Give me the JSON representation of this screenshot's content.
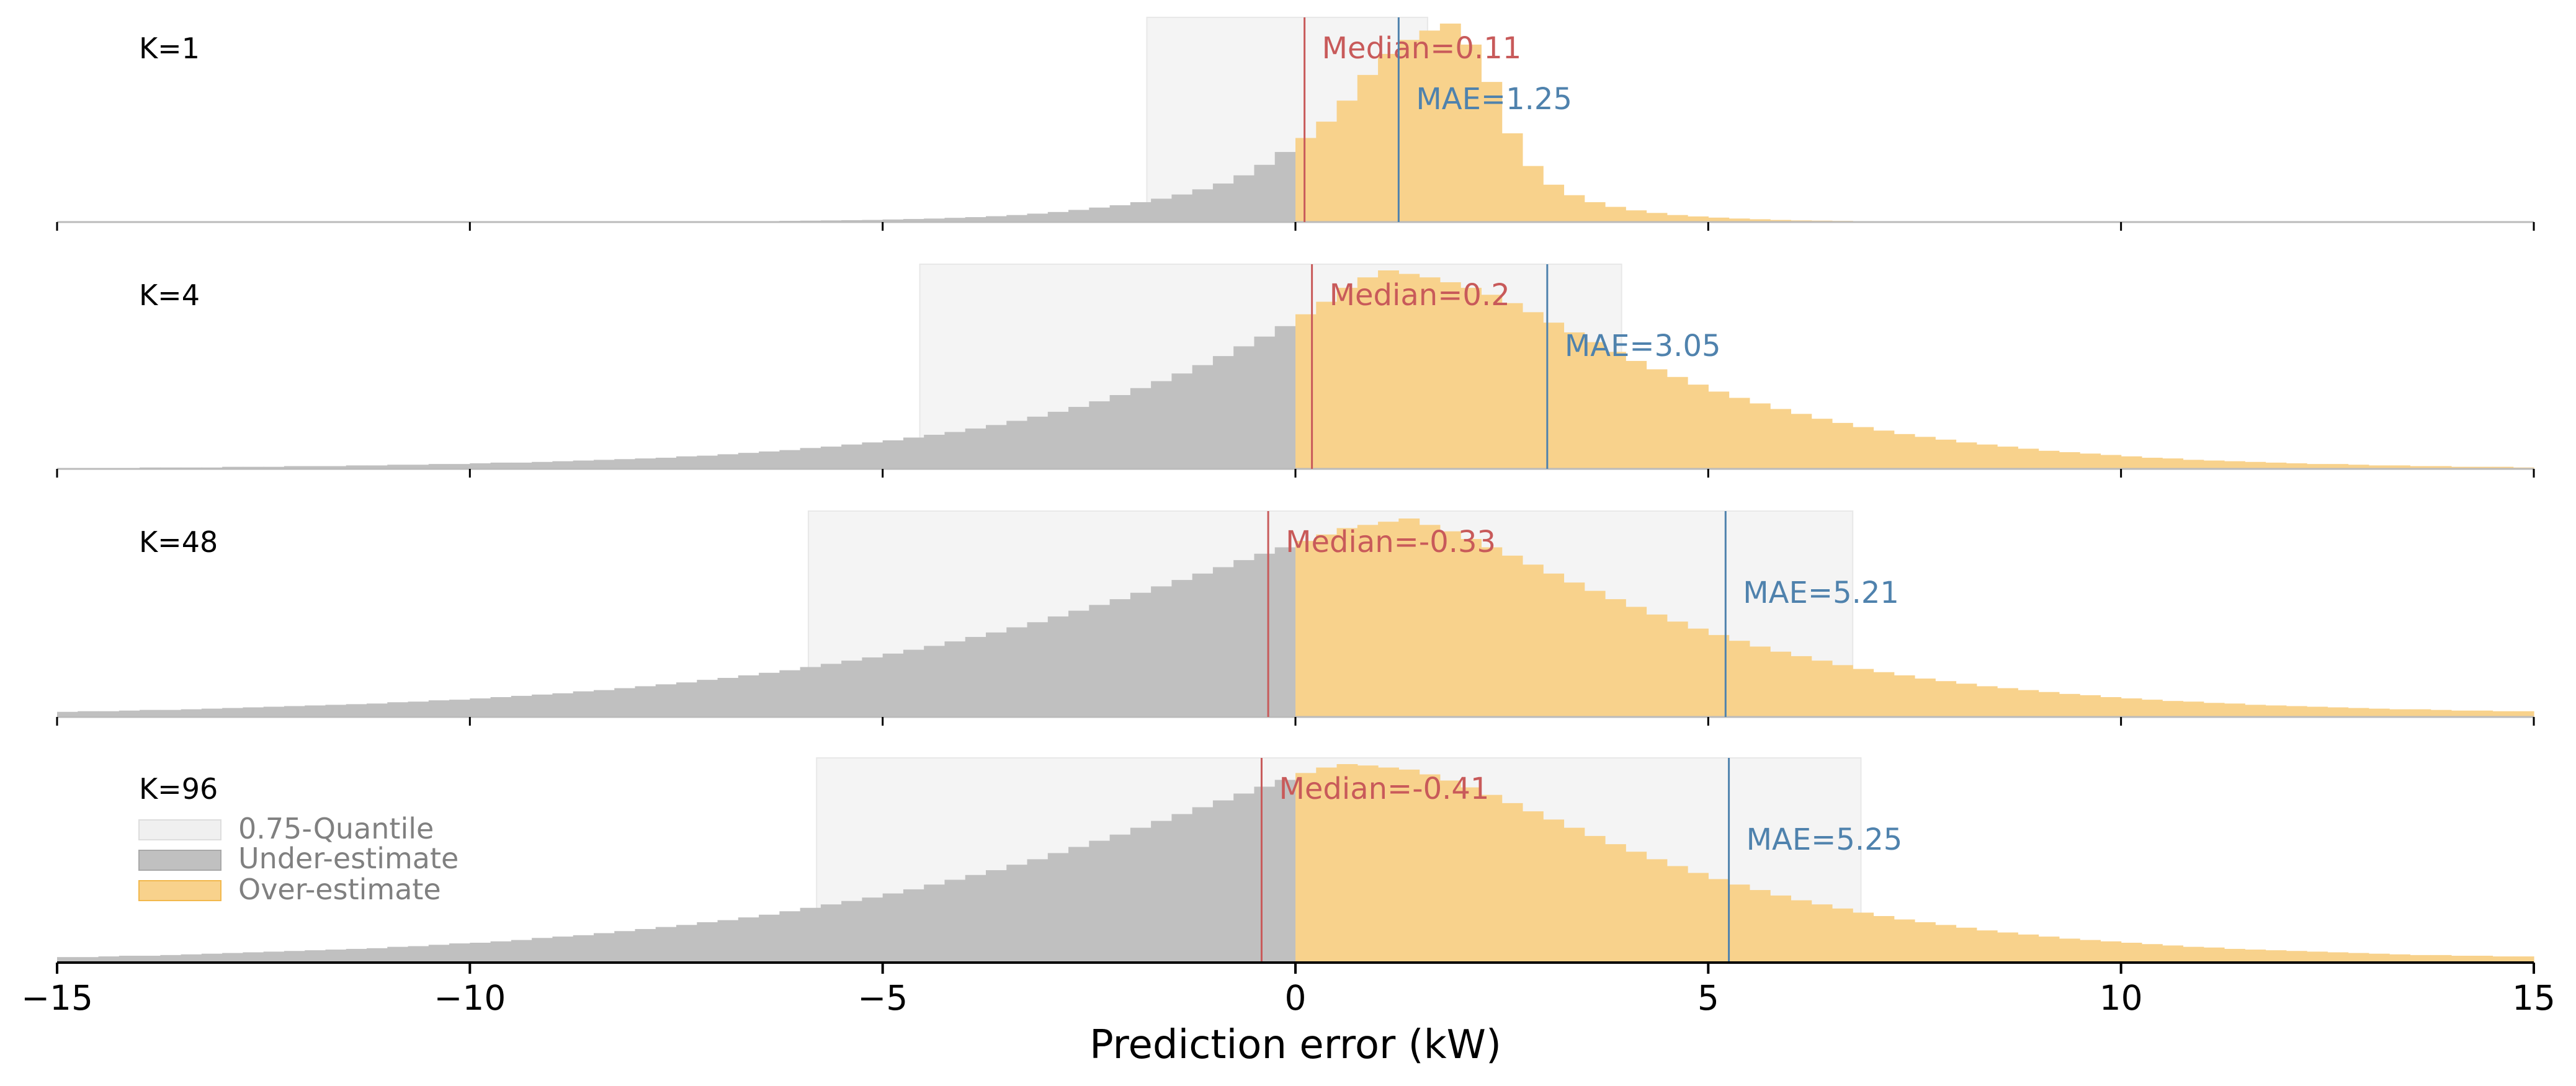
{
  "chart_data": {
    "type": "histogram",
    "xlabel": "Prediction error (kW)",
    "xlim": [
      -15,
      15
    ],
    "xticks": [
      {
        "value": -15,
        "label": "−15"
      },
      {
        "value": -10,
        "label": "−10"
      },
      {
        "value": -5,
        "label": "−5"
      },
      {
        "value": 0,
        "label": "0"
      },
      {
        "value": 5,
        "label": "5"
      },
      {
        "value": 10,
        "label": "10"
      },
      {
        "value": 15,
        "label": "15"
      }
    ],
    "legend": {
      "position": "inside-bottom-left",
      "entries": [
        "0.75-Quantile",
        "Under-estimate",
        "Over-estimate"
      ]
    },
    "colors": {
      "under": "#c0c0c0",
      "over": "#f8d28c",
      "quantile": "#f4f4f4",
      "median": "#c85a5a",
      "mae": "#4f82ad"
    },
    "panels": [
      {
        "label": "K=1",
        "median": 0.11,
        "median_label": "Median=0.11",
        "mae": 1.25,
        "mae_label": "MAE=1.25",
        "quantile_range": [
          -1.8,
          1.6
        ],
        "bin_width": 0.25,
        "bin_start": -15,
        "density": [
          0,
          0,
          0,
          0,
          0,
          0,
          0,
          0,
          0,
          0,
          0,
          0,
          0,
          0,
          0,
          0,
          0,
          0,
          0,
          0,
          0,
          0,
          0,
          0,
          0,
          0,
          0.001,
          0.001,
          0.001,
          0.002,
          0.002,
          0.002,
          0.003,
          0.003,
          0.004,
          0.005,
          0.006,
          0.007,
          0.008,
          0.009,
          0.011,
          0.013,
          0.015,
          0.018,
          0.021,
          0.025,
          0.03,
          0.036,
          0.043,
          0.052,
          0.062,
          0.072,
          0.085,
          0.1,
          0.118,
          0.14,
          0.165,
          0.2,
          0.245,
          0.3,
          0.36,
          0.43,
          0.52,
          0.63,
          0.72,
          0.78,
          0.82,
          0.85,
          0.76,
          0.6,
          0.38,
          0.24,
          0.16,
          0.115,
          0.085,
          0.065,
          0.05,
          0.039,
          0.03,
          0.024,
          0.019,
          0.015,
          0.012,
          0.009,
          0.007,
          0.006,
          0.005,
          0.004,
          0.003,
          0.002,
          0.002,
          0.001,
          0.001,
          0.001,
          0.001,
          0.001,
          0,
          0,
          0,
          0,
          0,
          0,
          0,
          0,
          0,
          0,
          0,
          0,
          0,
          0,
          0,
          0,
          0,
          0,
          0,
          0,
          0,
          0,
          0,
          0,
          0,
          0,
          0,
          0,
          0,
          0
        ]
      },
      {
        "label": "K=4",
        "median": 0.2,
        "median_label": "Median=0.2",
        "mae": 3.05,
        "mae_label": "MAE=3.05",
        "quantile_range": [
          -4.55,
          3.95
        ],
        "bin_width": 0.25,
        "bin_start": -15,
        "density": [
          0.001,
          0.001,
          0.001,
          0.001,
          0.002,
          0.002,
          0.002,
          0.002,
          0.003,
          0.003,
          0.003,
          0.004,
          0.004,
          0.004,
          0.005,
          0.005,
          0.006,
          0.006,
          0.007,
          0.007,
          0.008,
          0.009,
          0.009,
          0.01,
          0.011,
          0.012,
          0.013,
          0.014,
          0.015,
          0.016,
          0.018,
          0.019,
          0.021,
          0.023,
          0.025,
          0.027,
          0.03,
          0.032,
          0.035,
          0.038,
          0.041,
          0.045,
          0.049,
          0.053,
          0.058,
          0.063,
          0.069,
          0.075,
          0.082,
          0.089,
          0.097,
          0.106,
          0.116,
          0.126,
          0.137,
          0.149,
          0.162,
          0.176,
          0.19,
          0.205,
          0.222,
          0.24,
          0.26,
          0.275,
          0.285,
          0.28,
          0.275,
          0.268,
          0.26,
          0.25,
          0.238,
          0.225,
          0.21,
          0.196,
          0.182,
          0.168,
          0.155,
          0.143,
          0.132,
          0.121,
          0.111,
          0.102,
          0.094,
          0.086,
          0.079,
          0.072,
          0.066,
          0.06,
          0.055,
          0.05,
          0.046,
          0.042,
          0.038,
          0.035,
          0.032,
          0.029,
          0.026,
          0.024,
          0.022,
          0.02,
          0.018,
          0.016,
          0.015,
          0.013,
          0.012,
          0.011,
          0.01,
          0.009,
          0.008,
          0.007,
          0.007,
          0.006,
          0.005,
          0.005,
          0.004,
          0.004,
          0.003,
          0.003,
          0.003,
          0.002
        ]
      },
      {
        "label": "K=48",
        "median": -0.33,
        "median_label": "Median=-0.33",
        "mae": 5.21,
        "mae_label": "MAE=5.21",
        "quantile_range": [
          -5.9,
          6.75
        ],
        "bin_width": 0.25,
        "bin_start": -15,
        "density": [
          0.008,
          0.009,
          0.009,
          0.01,
          0.011,
          0.011,
          0.012,
          0.013,
          0.014,
          0.015,
          0.016,
          0.017,
          0.018,
          0.019,
          0.02,
          0.021,
          0.023,
          0.024,
          0.026,
          0.027,
          0.029,
          0.031,
          0.033,
          0.035,
          0.037,
          0.04,
          0.042,
          0.045,
          0.048,
          0.051,
          0.054,
          0.058,
          0.061,
          0.065,
          0.069,
          0.073,
          0.078,
          0.083,
          0.088,
          0.093,
          0.099,
          0.105,
          0.111,
          0.118,
          0.125,
          0.132,
          0.14,
          0.148,
          0.157,
          0.166,
          0.175,
          0.184,
          0.194,
          0.204,
          0.214,
          0.224,
          0.234,
          0.245,
          0.255,
          0.265,
          0.275,
          0.285,
          0.295,
          0.3,
          0.305,
          0.31,
          0.3,
          0.29,
          0.278,
          0.265,
          0.252,
          0.238,
          0.224,
          0.21,
          0.197,
          0.184,
          0.172,
          0.16,
          0.149,
          0.138,
          0.128,
          0.119,
          0.11,
          0.102,
          0.095,
          0.088,
          0.081,
          0.075,
          0.07,
          0.065,
          0.06,
          0.056,
          0.052,
          0.048,
          0.045,
          0.042,
          0.039,
          0.036,
          0.034,
          0.031,
          0.029,
          0.027,
          0.025,
          0.024,
          0.022,
          0.021,
          0.019,
          0.018,
          0.017,
          0.016,
          0.015,
          0.014,
          0.013,
          0.012,
          0.012,
          0.011,
          0.01,
          0.01,
          0.009,
          0.009
        ]
      },
      {
        "label": "K=96",
        "median": -0.41,
        "median_label": "Median=-0.41",
        "mae": 5.25,
        "mae_label": "MAE=5.25",
        "quantile_range": [
          -5.8,
          6.85
        ],
        "bin_width": 0.25,
        "bin_start": -15,
        "density": [
          0.008,
          0.008,
          0.009,
          0.01,
          0.01,
          0.011,
          0.012,
          0.013,
          0.014,
          0.015,
          0.016,
          0.017,
          0.018,
          0.019,
          0.02,
          0.021,
          0.023,
          0.024,
          0.026,
          0.028,
          0.029,
          0.031,
          0.033,
          0.036,
          0.038,
          0.04,
          0.043,
          0.046,
          0.049,
          0.052,
          0.055,
          0.059,
          0.062,
          0.066,
          0.07,
          0.075,
          0.08,
          0.085,
          0.09,
          0.095,
          0.101,
          0.107,
          0.114,
          0.121,
          0.128,
          0.135,
          0.143,
          0.151,
          0.16,
          0.169,
          0.178,
          0.187,
          0.197,
          0.207,
          0.217,
          0.227,
          0.237,
          0.247,
          0.257,
          0.267,
          0.277,
          0.285,
          0.29,
          0.288,
          0.285,
          0.282,
          0.275,
          0.266,
          0.256,
          0.245,
          0.233,
          0.221,
          0.209,
          0.197,
          0.185,
          0.173,
          0.162,
          0.151,
          0.141,
          0.131,
          0.122,
          0.114,
          0.106,
          0.098,
          0.091,
          0.085,
          0.079,
          0.073,
          0.068,
          0.063,
          0.059,
          0.055,
          0.051,
          0.047,
          0.044,
          0.041,
          0.038,
          0.035,
          0.033,
          0.031,
          0.029,
          0.027,
          0.025,
          0.023,
          0.022,
          0.02,
          0.019,
          0.018,
          0.017,
          0.016,
          0.015,
          0.014,
          0.013,
          0.012,
          0.011,
          0.011,
          0.01,
          0.01,
          0.009,
          0.009
        ]
      }
    ]
  }
}
